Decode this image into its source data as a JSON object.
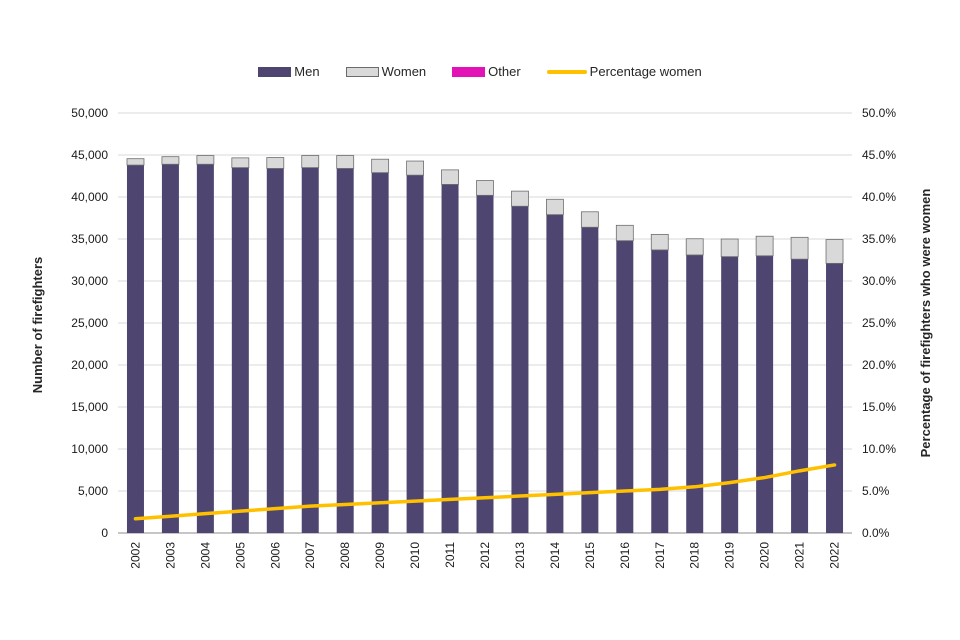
{
  "chart_data": {
    "type": "bar",
    "stacked": true,
    "title": "",
    "categories": [
      "2002",
      "2003",
      "2004",
      "2005",
      "2006",
      "2007",
      "2008",
      "2009",
      "2010",
      "2011",
      "2012",
      "2013",
      "2014",
      "2015",
      "2016",
      "2017",
      "2018",
      "2019",
      "2020",
      "2021",
      "2022"
    ],
    "series": [
      {
        "name": "Men",
        "color": "#4e4671",
        "values": [
          43800,
          43900,
          43900,
          43500,
          43400,
          43500,
          43400,
          42900,
          42600,
          41500,
          40200,
          38900,
          37900,
          36400,
          34800,
          33700,
          33100,
          32900,
          33000,
          32600,
          32100
        ]
      },
      {
        "name": "Women",
        "color": "#d9d9d9",
        "stroke": "#6e6e6e",
        "values": [
          760,
          900,
          1030,
          1160,
          1300,
          1440,
          1530,
          1600,
          1680,
          1730,
          1760,
          1800,
          1830,
          1840,
          1830,
          1850,
          1930,
          2100,
          2330,
          2600,
          2830
        ]
      },
      {
        "name": "Other",
        "color": "#e312b6",
        "values": [
          0,
          0,
          0,
          0,
          0,
          0,
          0,
          0,
          0,
          0,
          0,
          0,
          0,
          0,
          0,
          0,
          0,
          0,
          0,
          0,
          0
        ]
      }
    ],
    "line_series": {
      "name": "Percentage women",
      "color": "#ffc000",
      "values": [
        1.7,
        2.0,
        2.3,
        2.6,
        2.9,
        3.2,
        3.4,
        3.6,
        3.8,
        4.0,
        4.2,
        4.4,
        4.6,
        4.8,
        5.0,
        5.2,
        5.5,
        6.0,
        6.6,
        7.4,
        8.1
      ]
    },
    "y_axis": {
      "label": "Number of firefighters",
      "min": 0,
      "max": 50000,
      "ticks": [
        {
          "value": 0,
          "label": "0"
        },
        {
          "value": 5000,
          "label": "5,000"
        },
        {
          "value": 10000,
          "label": "10,000"
        },
        {
          "value": 15000,
          "label": "15,000"
        },
        {
          "value": 20000,
          "label": "20,000"
        },
        {
          "value": 25000,
          "label": "25,000"
        },
        {
          "value": 30000,
          "label": "30,000"
        },
        {
          "value": 35000,
          "label": "35,000"
        },
        {
          "value": 40000,
          "label": "40,000"
        },
        {
          "value": 45000,
          "label": "45,000"
        },
        {
          "value": 50000,
          "label": "50,000"
        }
      ]
    },
    "y2_axis": {
      "label": "Percentage of firefighters who were women",
      "min": 0,
      "max": 50,
      "ticks": [
        {
          "value": 0,
          "label": "0.0%"
        },
        {
          "value": 5,
          "label": "5.0%"
        },
        {
          "value": 10,
          "label": "10.0%"
        },
        {
          "value": 15,
          "label": "15.0%"
        },
        {
          "value": 20,
          "label": "20.0%"
        },
        {
          "value": 25,
          "label": "25.0%"
        },
        {
          "value": 30,
          "label": "30.0%"
        },
        {
          "value": 35,
          "label": "35.0%"
        },
        {
          "value": 40,
          "label": "40.0%"
        },
        {
          "value": 45,
          "label": "45.0%"
        },
        {
          "value": 50,
          "label": "50.0%"
        }
      ]
    },
    "grid": true,
    "legend_position": "top",
    "xlabel": ""
  }
}
